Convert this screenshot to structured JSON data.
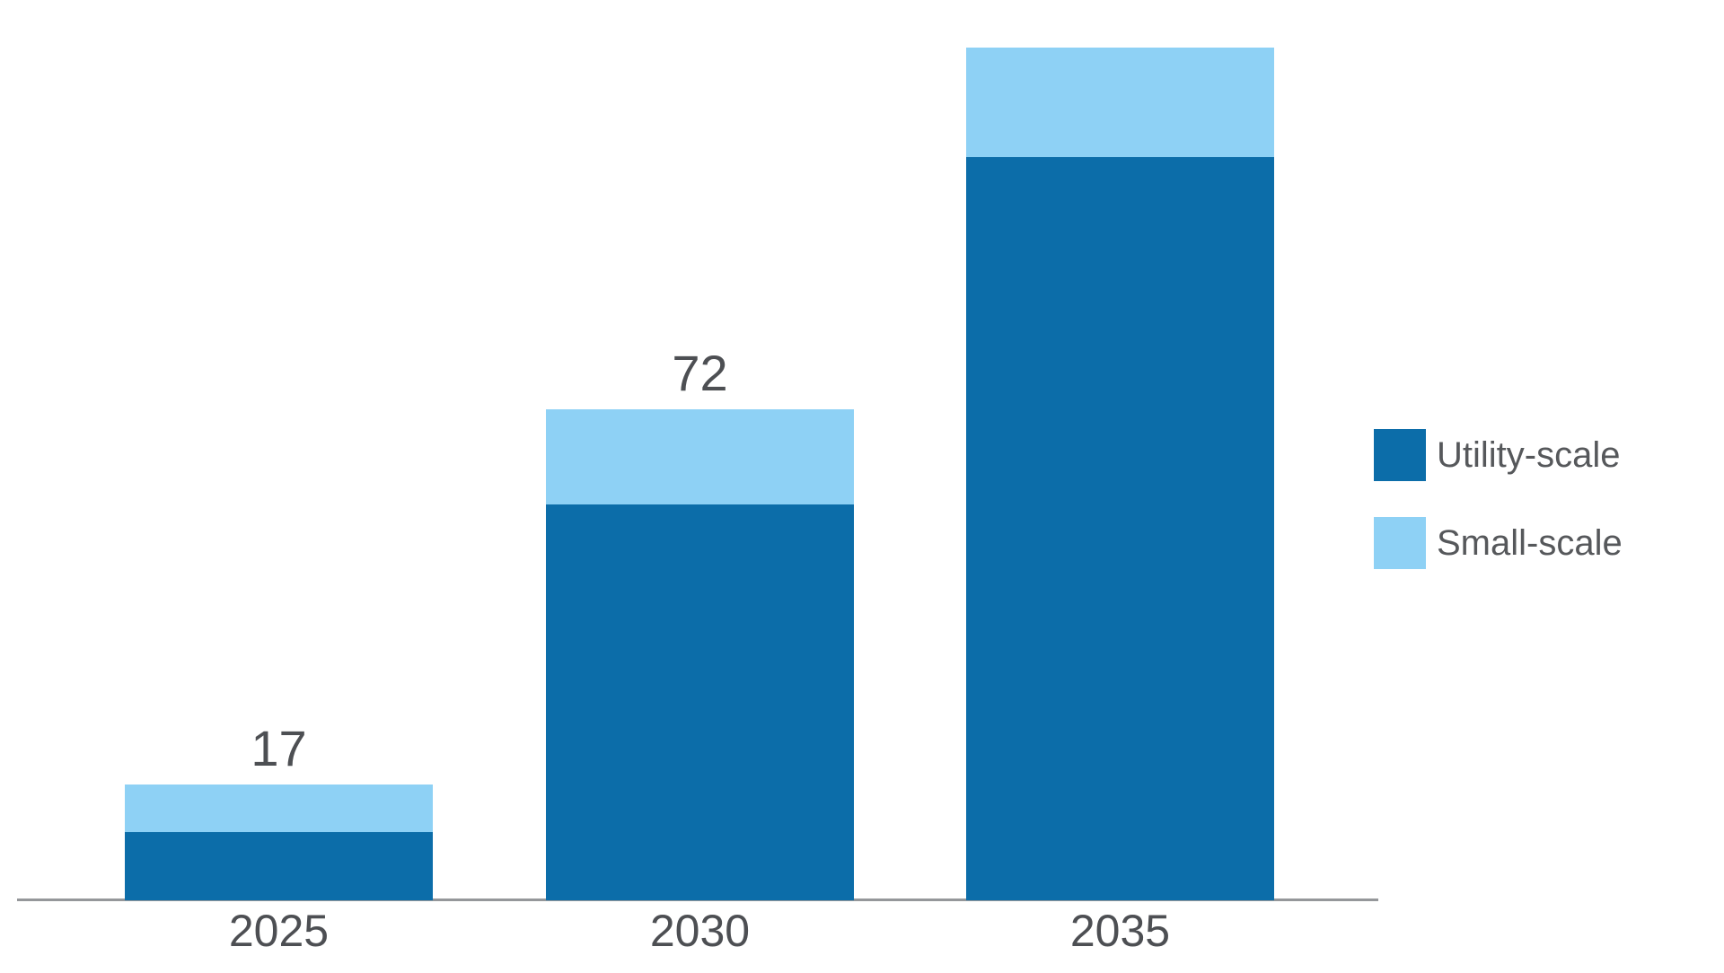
{
  "chart_data": {
    "type": "bar",
    "stacked": true,
    "orientation": "vertical",
    "categories": [
      "2025",
      "2030",
      "2035"
    ],
    "series": [
      {
        "name": "Utility-scale",
        "color": "#0c6da9",
        "values": [
          10,
          58,
          109
        ]
      },
      {
        "name": "Small-scale",
        "color": "#8ed1f5",
        "values": [
          7,
          14,
          16
        ]
      }
    ],
    "totals": [
      17,
      72,
      125
    ],
    "total_labels": [
      "17",
      "72",
      ""
    ],
    "title": "",
    "xlabel": "",
    "ylabel": "",
    "ylim": [
      0,
      135
    ],
    "grid": false,
    "y_axis_visible": false,
    "x_axis_line_visible": true,
    "legend_position": "right",
    "colors": {
      "axis_line": "#95979a",
      "value_label_text": "#4d4f53",
      "tick_label_text": "#4d4f53",
      "legend_text": "#56585b",
      "background": "#ffffff"
    }
  }
}
